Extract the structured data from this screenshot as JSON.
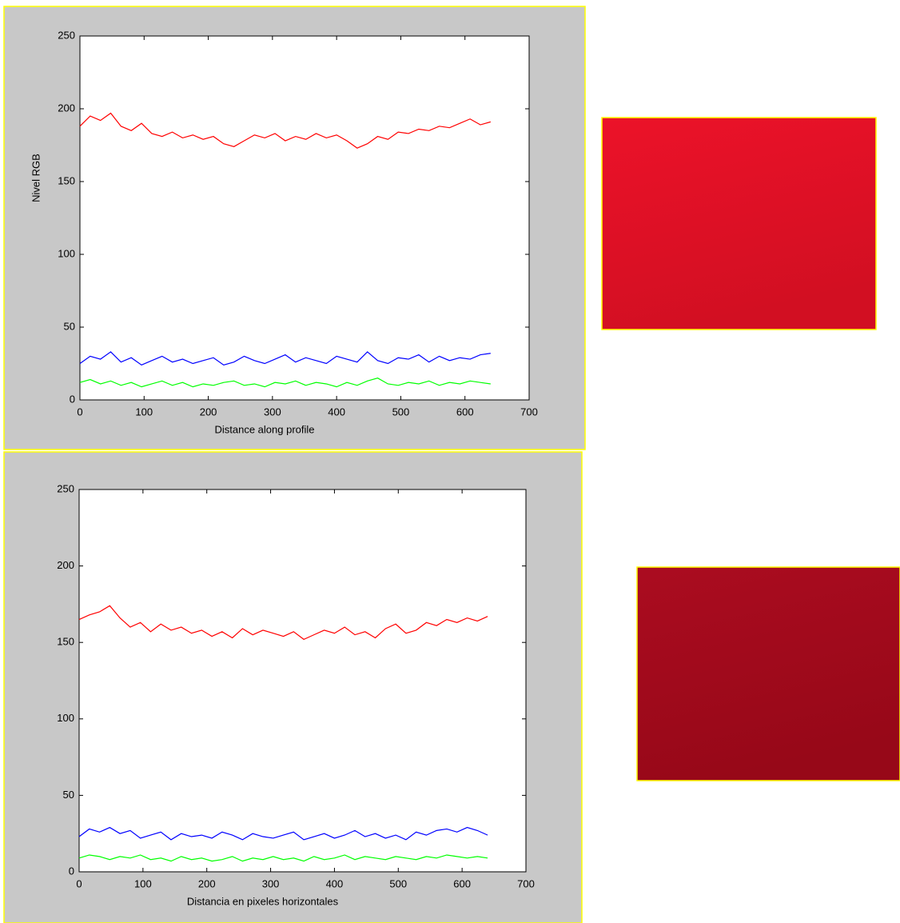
{
  "chart_data": [
    {
      "type": "line",
      "xlabel": "Distance along profile",
      "ylabel": "Nivel RGB",
      "x": [
        0,
        16,
        32,
        48,
        64,
        80,
        96,
        112,
        128,
        144,
        160,
        176,
        192,
        208,
        224,
        240,
        256,
        272,
        288,
        304,
        320,
        336,
        352,
        368,
        384,
        400,
        416,
        432,
        448,
        464,
        480,
        496,
        512,
        528,
        544,
        560,
        576,
        592,
        608,
        624,
        640
      ],
      "series": [
        {
          "color": "#ff0000",
          "values": [
            188,
            195,
            192,
            197,
            188,
            185,
            190,
            183,
            181,
            184,
            180,
            182,
            179,
            181,
            176,
            174,
            178,
            182,
            180,
            183,
            178,
            181,
            179,
            183,
            180,
            182,
            178,
            173,
            176,
            181,
            179,
            184,
            183,
            186,
            185,
            188,
            187,
            190,
            193,
            189,
            191
          ]
        },
        {
          "color": "#0000ff",
          "values": [
            25,
            30,
            28,
            33,
            26,
            29,
            24,
            27,
            30,
            26,
            28,
            25,
            27,
            29,
            24,
            26,
            30,
            27,
            25,
            28,
            31,
            26,
            29,
            27,
            25,
            30,
            28,
            26,
            33,
            27,
            25,
            29,
            28,
            31,
            26,
            30,
            27,
            29,
            28,
            31,
            32
          ]
        },
        {
          "color": "#00ff00",
          "values": [
            12,
            14,
            11,
            13,
            10,
            12,
            9,
            11,
            13,
            10,
            12,
            9,
            11,
            10,
            12,
            13,
            10,
            11,
            9,
            12,
            11,
            13,
            10,
            12,
            11,
            9,
            12,
            10,
            13,
            15,
            11,
            10,
            12,
            11,
            13,
            10,
            12,
            11,
            13,
            12,
            11
          ]
        }
      ],
      "xlim": [
        0,
        700
      ],
      "ylim": [
        0,
        250
      ],
      "xticks": [
        0,
        100,
        200,
        300,
        400,
        500,
        600,
        700
      ],
      "yticks": [
        0,
        50,
        100,
        150,
        200,
        250
      ]
    },
    {
      "type": "line",
      "xlabel": "Distancia en pixeles horizontales",
      "x": [
        0,
        16,
        32,
        48,
        64,
        80,
        96,
        112,
        128,
        144,
        160,
        176,
        192,
        208,
        224,
        240,
        256,
        272,
        288,
        304,
        320,
        336,
        352,
        368,
        384,
        400,
        416,
        432,
        448,
        464,
        480,
        496,
        512,
        528,
        544,
        560,
        576,
        592,
        608,
        624,
        640
      ],
      "series": [
        {
          "color": "#ff0000",
          "values": [
            165,
            168,
            170,
            174,
            166,
            160,
            163,
            157,
            162,
            158,
            160,
            156,
            158,
            154,
            157,
            153,
            159,
            155,
            158,
            156,
            154,
            157,
            152,
            155,
            158,
            156,
            160,
            155,
            157,
            153,
            159,
            162,
            156,
            158,
            163,
            161,
            165,
            163,
            166,
            164,
            167
          ]
        },
        {
          "color": "#0000ff",
          "values": [
            23,
            28,
            26,
            29,
            25,
            27,
            22,
            24,
            26,
            21,
            25,
            23,
            24,
            22,
            26,
            24,
            21,
            25,
            23,
            22,
            24,
            26,
            21,
            23,
            25,
            22,
            24,
            27,
            23,
            25,
            22,
            24,
            21,
            26,
            24,
            27,
            28,
            26,
            29,
            27,
            24
          ]
        },
        {
          "color": "#00ff00",
          "values": [
            9,
            11,
            10,
            8,
            10,
            9,
            11,
            8,
            9,
            7,
            10,
            8,
            9,
            7,
            8,
            10,
            7,
            9,
            8,
            10,
            8,
            9,
            7,
            10,
            8,
            9,
            11,
            8,
            10,
            9,
            8,
            10,
            9,
            8,
            10,
            9,
            11,
            10,
            9,
            10,
            9
          ]
        }
      ],
      "xlim": [
        0,
        700
      ],
      "ylim": [
        0,
        250
      ],
      "xticks": [
        0,
        100,
        200,
        300,
        400,
        500,
        600,
        700
      ],
      "yticks": [
        0,
        50,
        100,
        150,
        200,
        250
      ]
    }
  ]
}
